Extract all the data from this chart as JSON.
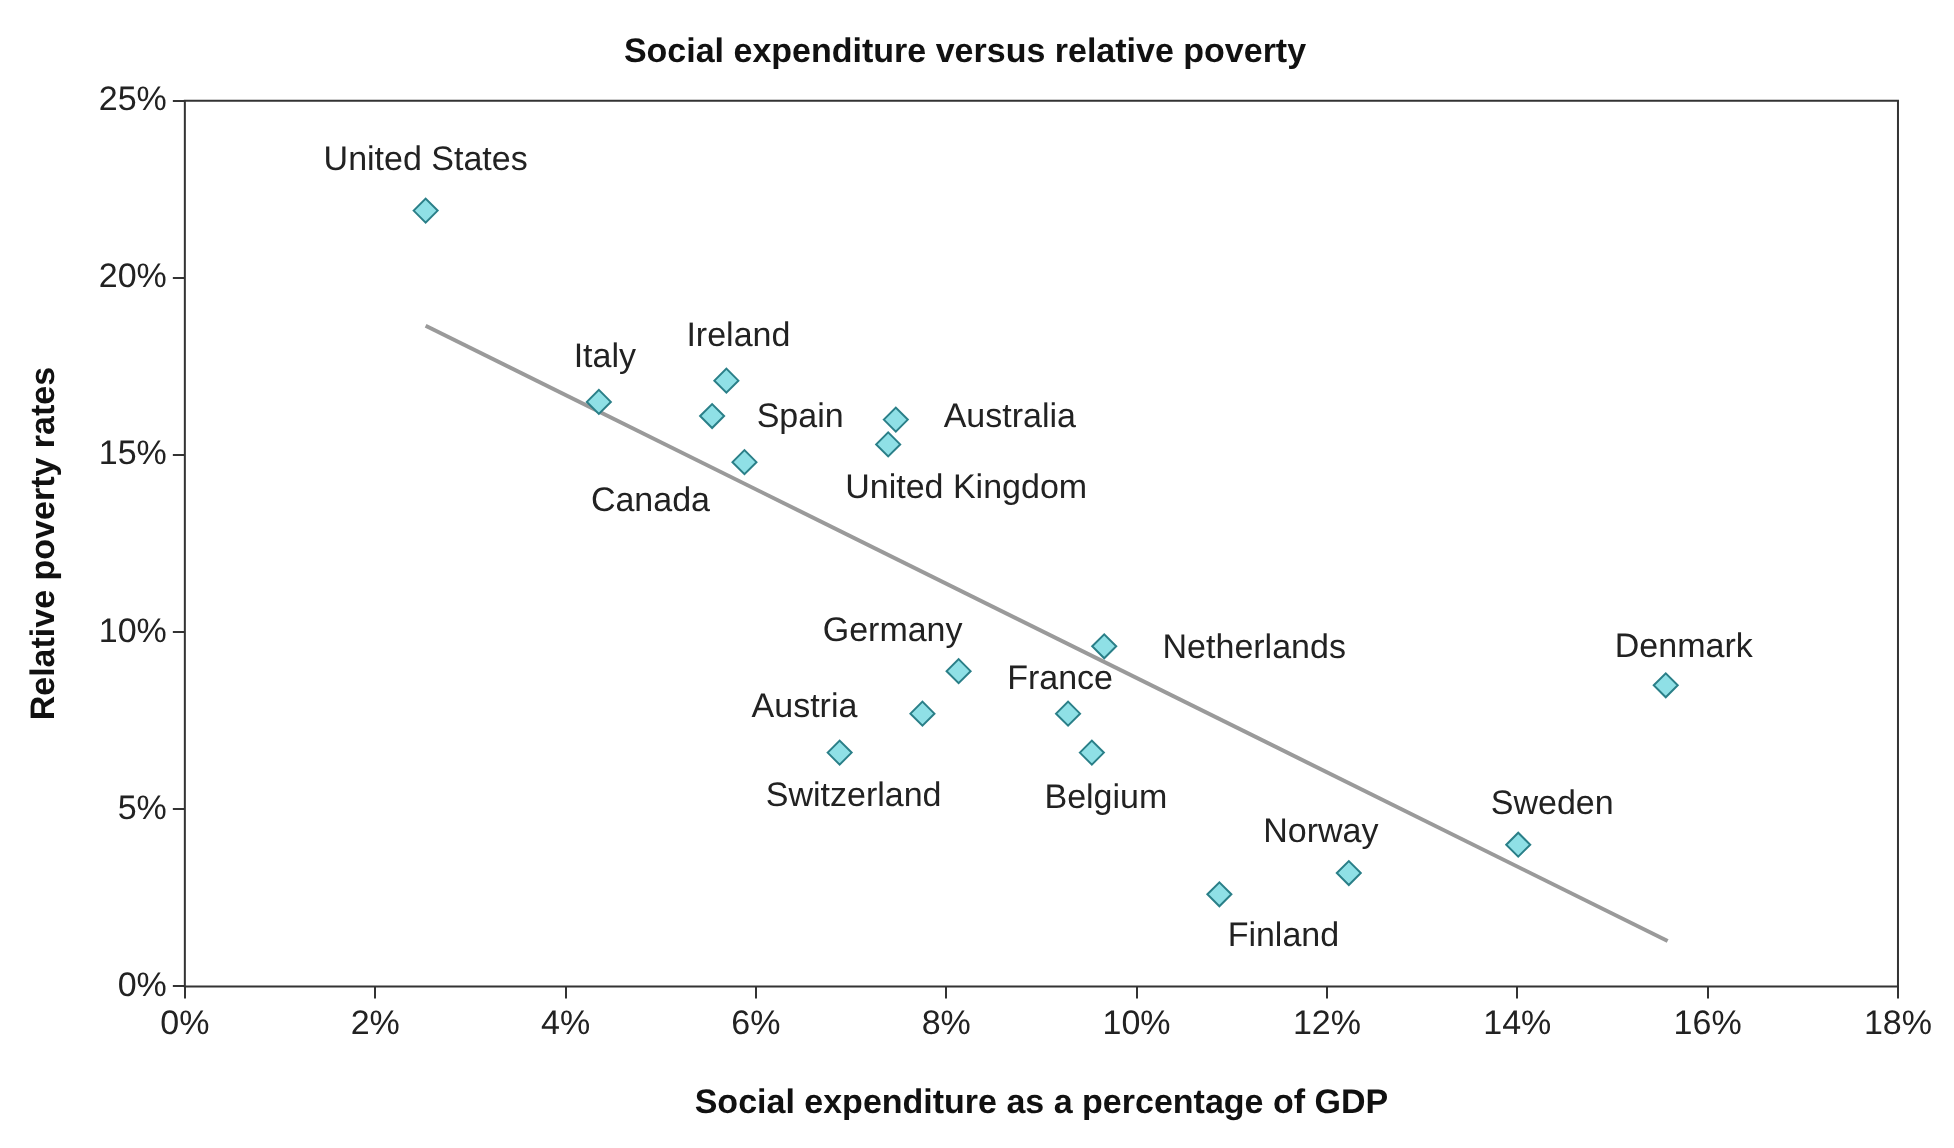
{
  "chart_data": {
    "type": "scatter",
    "title": "Social expenditure versus relative poverty",
    "xlabel": "Social expenditure as a percentage of GDP",
    "ylabel": "Relative poverty rates",
    "xlim": [
      0,
      18
    ],
    "xticks": [
      {
        "value": 0,
        "label": "0%"
      },
      {
        "value": 2,
        "label": "2%"
      },
      {
        "value": 4,
        "label": "4%"
      },
      {
        "value": 6,
        "label": "6%"
      },
      {
        "value": 8,
        "label": "8%"
      },
      {
        "value": 10,
        "label": "10%"
      },
      {
        "value": 12,
        "label": "12%"
      },
      {
        "value": 14,
        "label": "14%"
      },
      {
        "value": 16,
        "label": "16%"
      },
      {
        "value": 18,
        "label": "18%"
      }
    ],
    "ylim": [
      0,
      25
    ],
    "yticks": [
      {
        "value": 0,
        "label": "0%"
      },
      {
        "value": 5,
        "label": "5%"
      },
      {
        "value": 10,
        "label": "10%"
      },
      {
        "value": 15,
        "label": "15%"
      },
      {
        "value": 20,
        "label": "20%"
      },
      {
        "value": 25,
        "label": "25%"
      }
    ],
    "grid": false,
    "legend": false,
    "marker": "diamond",
    "series": [
      {
        "color": "#8fe0e6",
        "x": [
          2.53,
          4.35,
          5.69,
          5.54,
          5.88,
          7.47,
          7.39,
          8.13,
          9.66,
          7.75,
          9.28,
          6.88,
          9.53,
          15.56,
          14.01,
          12.23,
          10.87
        ],
        "values": [
          21.9,
          16.5,
          17.1,
          16.1,
          14.8,
          16.0,
          15.3,
          8.9,
          9.6,
          7.7,
          7.7,
          6.6,
          6.6,
          8.5,
          4.0,
          3.2,
          2.6
        ]
      },
      {
        "type": "line",
        "color": "#9a9a9a",
        "x": [
          2.53,
          15.58
        ],
        "values": [
          18.65,
          1.28
        ],
        "marker": "none"
      }
    ],
    "annotations": [
      {
        "text": "United States",
        "x": 2.53,
        "y": 21.9
      },
      {
        "text": "Italy",
        "x": 4.35,
        "y": 16.5
      },
      {
        "text": "Ireland",
        "x": 5.69,
        "y": 17.1
      },
      {
        "text": "Spain",
        "x": 5.54,
        "y": 16.1
      },
      {
        "text": "Canada",
        "x": 5.88,
        "y": 14.8
      },
      {
        "text": "Australia",
        "x": 7.47,
        "y": 16.0
      },
      {
        "text": "United Kingdom",
        "x": 7.39,
        "y": 15.3
      },
      {
        "text": "Germany",
        "x": 8.13,
        "y": 8.9
      },
      {
        "text": "Netherlands",
        "x": 9.66,
        "y": 9.6
      },
      {
        "text": "Austria",
        "x": 7.75,
        "y": 7.7
      },
      {
        "text": "France",
        "x": 9.28,
        "y": 7.7
      },
      {
        "text": "Switzerland",
        "x": 6.88,
        "y": 6.6
      },
      {
        "text": "Belgium",
        "x": 9.53,
        "y": 6.6
      },
      {
        "text": "Denmark",
        "x": 15.56,
        "y": 8.5
      },
      {
        "text": "Sweden",
        "x": 14.01,
        "y": 4.0
      },
      {
        "text": "Norway",
        "x": 12.23,
        "y": 3.2
      },
      {
        "text": "Finland",
        "x": 10.87,
        "y": 2.6
      }
    ]
  }
}
